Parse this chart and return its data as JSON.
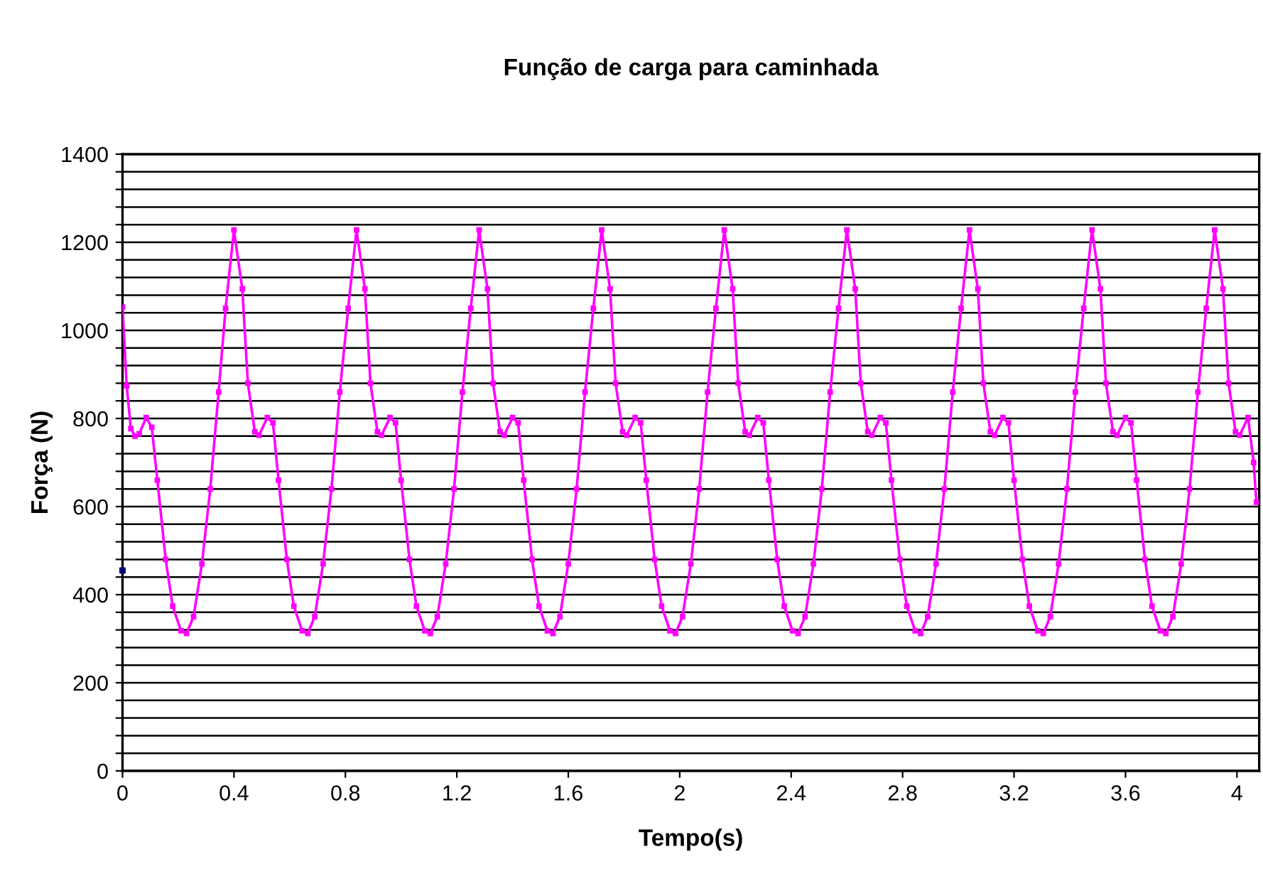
{
  "chart_data": {
    "type": "line",
    "title": "Função de carga para caminhada",
    "xlabel": "Tempo(s)",
    "ylabel": "Força (N)",
    "xlim": [
      0,
      4.08
    ],
    "xticks": [
      0,
      0.4,
      0.8,
      1.2,
      1.6,
      2,
      2.4,
      2.8,
      3.2,
      3.6,
      4
    ],
    "ylim": [
      0,
      1400
    ],
    "yticks": [
      0,
      {
        "value": 40,
        "label": null
      },
      {
        "value": 80,
        "label": null
      },
      {
        "value": 120,
        "label": null
      },
      {
        "value": 160,
        "label": null
      },
      200,
      {
        "value": 240,
        "label": null
      },
      {
        "value": 280,
        "label": null
      },
      {
        "value": 320,
        "label": null
      },
      {
        "value": 360,
        "label": null
      },
      400,
      {
        "value": 440,
        "label": null
      },
      {
        "value": 480,
        "label": null
      },
      {
        "value": 520,
        "label": null
      },
      {
        "value": 560,
        "label": null
      },
      600,
      {
        "value": 640,
        "label": null
      },
      {
        "value": 680,
        "label": null
      },
      {
        "value": 720,
        "label": null
      },
      {
        "value": 760,
        "label": null
      },
      800,
      {
        "value": 840,
        "label": null
      },
      {
        "value": 880,
        "label": null
      },
      {
        "value": 920,
        "label": null
      },
      {
        "value": 960,
        "label": null
      },
      1000,
      {
        "value": 1040,
        "label": null
      },
      {
        "value": 1080,
        "label": null
      },
      {
        "value": 1120,
        "label": null
      },
      {
        "value": 1160,
        "label": null
      },
      1200,
      {
        "value": 1240,
        "label": null
      },
      {
        "value": 1280,
        "label": null
      },
      {
        "value": 1320,
        "label": null
      },
      {
        "value": 1360,
        "label": null
      },
      1400
    ],
    "grid": "y",
    "marker": "square",
    "line_style": "solid",
    "series": [
      {
        "color": "#ff00ff",
        "x": [
          0,
          0.015,
          0.03,
          0.045,
          0.06,
          0.085,
          0.105,
          0.125,
          0.155,
          0.18,
          0.21,
          0.23,
          0.255,
          0.285,
          0.315,
          0.345,
          0.37,
          0.4,
          0.43,
          0.45,
          0.475,
          0.49,
          0.52,
          0.54,
          0.56,
          0.59,
          0.615,
          0.645,
          0.665,
          0.69,
          0.72,
          0.75,
          0.78,
          0.81,
          0.84,
          0.87,
          0.89,
          0.915,
          0.93,
          0.96,
          0.98,
          1.0,
          1.03,
          1.055,
          1.085,
          1.105,
          1.13,
          1.16,
          1.19,
          1.22,
          1.25,
          1.28,
          1.31,
          1.33,
          1.355,
          1.37,
          1.4,
          1.42,
          1.44,
          1.47,
          1.495,
          1.525,
          1.545,
          1.57,
          1.6,
          1.63,
          1.66,
          1.69,
          1.72,
          1.75,
          1.77,
          1.795,
          1.81,
          1.84,
          1.86,
          1.88,
          1.91,
          1.935,
          1.965,
          1.985,
          2.01,
          2.04,
          2.07,
          2.1,
          2.13,
          2.16,
          2.19,
          2.21,
          2.235,
          2.25,
          2.28,
          2.3,
          2.32,
          2.35,
          2.375,
          2.405,
          2.425,
          2.45,
          2.48,
          2.51,
          2.54,
          2.57,
          2.6,
          2.63,
          2.65,
          2.675,
          2.69,
          2.72,
          2.74,
          2.76,
          2.79,
          2.815,
          2.845,
          2.865,
          2.89,
          2.92,
          2.95,
          2.98,
          3.01,
          3.04,
          3.07,
          3.09,
          3.115,
          3.13,
          3.16,
          3.18,
          3.2,
          3.23,
          3.255,
          3.285,
          3.305,
          3.33,
          3.36,
          3.39,
          3.42,
          3.45,
          3.48,
          3.51,
          3.53,
          3.555,
          3.57,
          3.6,
          3.62,
          3.64,
          3.67,
          3.695,
          3.725,
          3.745,
          3.77,
          3.8,
          3.83,
          3.86,
          3.89,
          3.92,
          3.95,
          3.97,
          3.995,
          4.01,
          4.04,
          4.06,
          4.07
        ],
        "values": [
          1053,
          874,
          777,
          760,
          765,
          802,
          780,
          660,
          480,
          374,
          318,
          312,
          350,
          470,
          640,
          860,
          1050,
          1228,
          1094,
          880,
          770,
          762,
          802,
          790,
          660,
          480,
          374,
          318,
          312,
          350,
          470,
          640,
          860,
          1050,
          1228,
          1094,
          880,
          770,
          762,
          802,
          790,
          660,
          480,
          374,
          318,
          312,
          350,
          470,
          640,
          860,
          1050,
          1228,
          1094,
          880,
          770,
          762,
          802,
          790,
          660,
          480,
          374,
          318,
          312,
          350,
          470,
          640,
          860,
          1050,
          1228,
          1094,
          880,
          770,
          762,
          802,
          790,
          660,
          480,
          374,
          318,
          312,
          350,
          470,
          640,
          860,
          1050,
          1228,
          1094,
          880,
          770,
          762,
          802,
          790,
          660,
          480,
          374,
          318,
          312,
          350,
          470,
          640,
          860,
          1050,
          1228,
          1094,
          880,
          770,
          762,
          802,
          790,
          660,
          480,
          374,
          318,
          312,
          350,
          470,
          640,
          860,
          1050,
          1228,
          1094,
          880,
          770,
          762,
          802,
          790,
          660,
          480,
          374,
          318,
          312,
          350,
          470,
          640,
          860,
          1050,
          1228,
          1094,
          880,
          770,
          762,
          802,
          790,
          660,
          480,
          374,
          318,
          312,
          350,
          470,
          640,
          860,
          1050,
          1228,
          1094,
          880,
          770,
          762,
          802,
          700,
          610
        ]
      },
      {
        "type": "scatter",
        "color": "#000080",
        "x": [
          0
        ],
        "values": [
          455
        ]
      }
    ]
  }
}
